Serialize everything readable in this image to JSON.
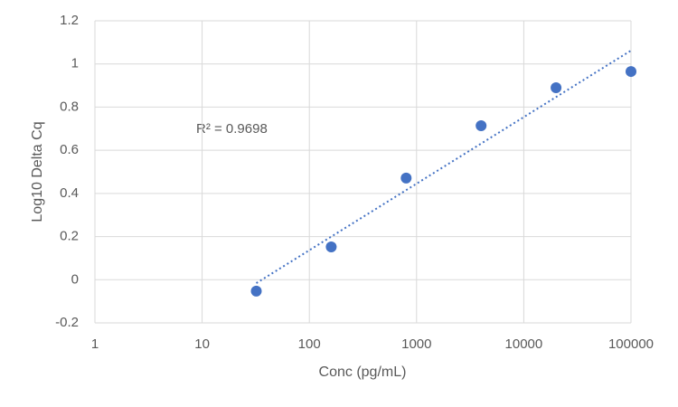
{
  "chart_data": {
    "type": "scatter",
    "x_label": "Conc (pg/mL)",
    "y_label": "Log10 Delta Cq",
    "annotation": "R² = 0.9698",
    "x": [
      32,
      160,
      800,
      4000,
      20000,
      100000
    ],
    "values": [
      -0.053,
      0.152,
      0.471,
      0.714,
      0.89,
      0.965
    ],
    "color": "#4472c4",
    "trendline": true,
    "x_log": true,
    "grid": true,
    "xlim": [
      1,
      100000
    ],
    "xticks": [
      1,
      10,
      100,
      1000,
      10000,
      100000
    ],
    "ylim": [
      -0.2,
      1.2
    ],
    "yticks": [
      -0.2,
      0,
      0.2,
      0.4,
      0.6,
      0.8,
      1,
      1.2
    ]
  }
}
